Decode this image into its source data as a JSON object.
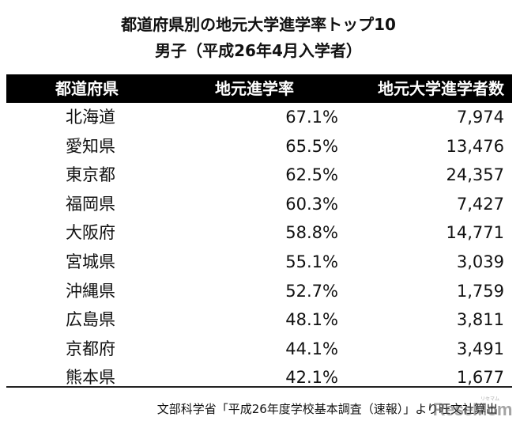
{
  "title": {
    "line1": "都道府県別の地元大学進学率トップ10",
    "line2": "男子（平成26年4月入学者）"
  },
  "table": {
    "headers": [
      "都道府県",
      "地元進学率",
      "地元大学進学者数"
    ],
    "rows": [
      {
        "prefecture": "北海道",
        "rate": "67.1%",
        "count": "7,974"
      },
      {
        "prefecture": "愛知県",
        "rate": "65.5%",
        "count": "13,476"
      },
      {
        "prefecture": "東京都",
        "rate": "62.5%",
        "count": "24,357"
      },
      {
        "prefecture": "福岡県",
        "rate": "60.3%",
        "count": "7,427"
      },
      {
        "prefecture": "大阪府",
        "rate": "58.8%",
        "count": "14,771"
      },
      {
        "prefecture": "宮城県",
        "rate": "55.1%",
        "count": "3,039"
      },
      {
        "prefecture": "沖縄県",
        "rate": "52.7%",
        "count": "1,759"
      },
      {
        "prefecture": "広島県",
        "rate": "48.1%",
        "count": "3,811"
      },
      {
        "prefecture": "京都府",
        "rate": "44.1%",
        "count": "3,491"
      },
      {
        "prefecture": "熊本県",
        "rate": "42.1%",
        "count": "1,677"
      }
    ]
  },
  "footer": {
    "source": "文部科学省「平成26年度学校基本調査（速報）」より旺文社算出",
    "watermark": "ReseMom",
    "watermark_sub": "リセマム"
  },
  "colors": {
    "header_bg": "#000000",
    "header_text": "#ffffff",
    "body_text": "#111111",
    "rule": "#222222"
  }
}
